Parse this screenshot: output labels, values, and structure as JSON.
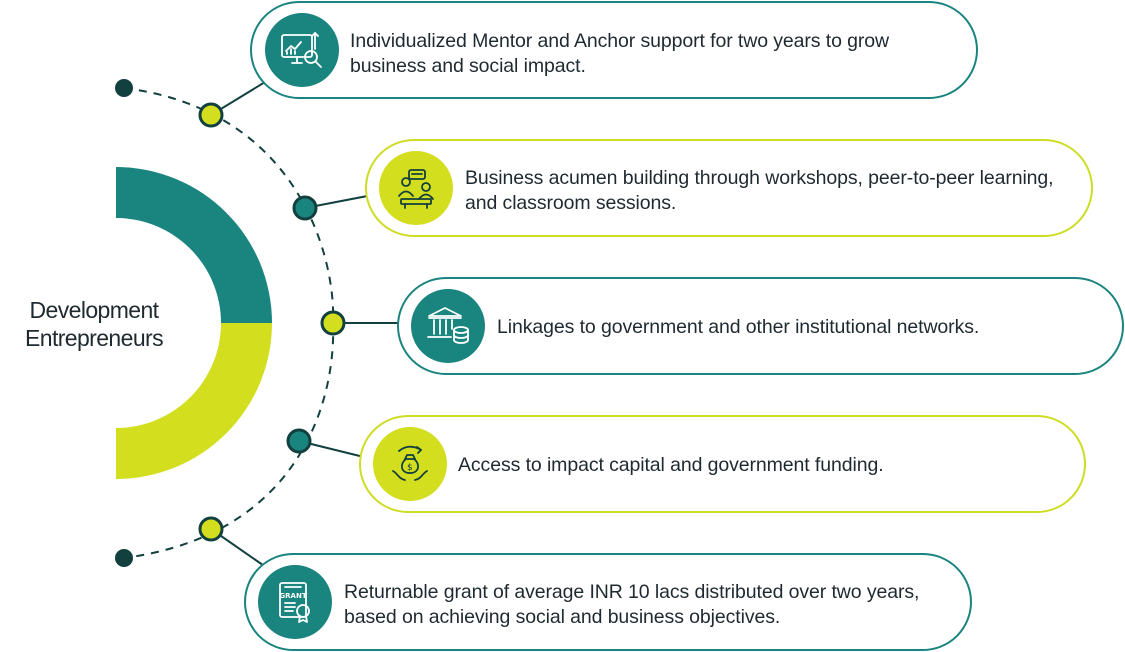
{
  "hub": {
    "title_line1": "Development",
    "title_line2": "Entrepreneurs"
  },
  "colors": {
    "teal": "#1a847f",
    "lime": "#d2de1e",
    "dark": "#12403f",
    "text": "#1f2a30"
  },
  "items": [
    {
      "text": "Individualized Mentor and Anchor support for two years to grow business and social impact.",
      "icon": "analytics-monitor-icon",
      "accent": "teal"
    },
    {
      "text": "Business acumen building through workshops, peer-to-peer learning, and classroom sessions.",
      "icon": "workshop-meeting-icon",
      "accent": "lime"
    },
    {
      "text": "Linkages to government and other institutional networks.",
      "icon": "government-building-icon",
      "accent": "teal"
    },
    {
      "text": "Access to impact capital and government funding.",
      "icon": "funding-hands-icon",
      "accent": "lime"
    },
    {
      "text": "Returnable grant of average INR 10 lacs distributed over two years, based on achieving social and business objectives.",
      "icon": "grant-certificate-icon",
      "accent": "teal"
    }
  ],
  "icons": {
    "grant_label": "GRANT"
  }
}
